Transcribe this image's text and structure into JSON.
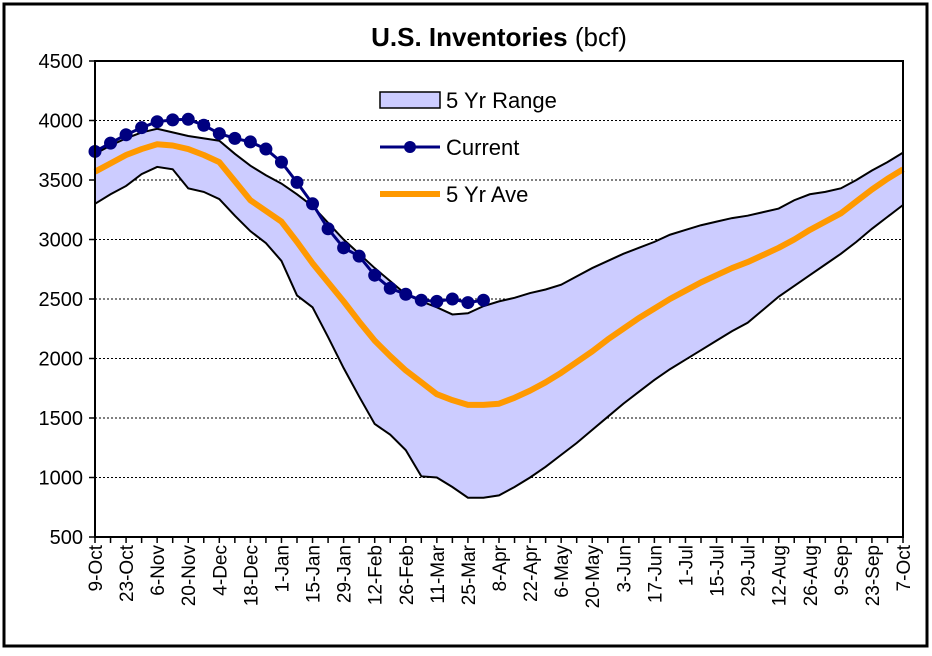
{
  "chart_data": {
    "type": "line",
    "title": "U.S. Inventories",
    "title_unit": "(bcf)",
    "categories": [
      "9-Oct",
      null,
      "23-Oct",
      null,
      "6-Nov",
      null,
      "20-Nov",
      null,
      "4-Dec",
      null,
      "18-Dec",
      null,
      "1-Jan",
      null,
      "15-Jan",
      null,
      "29-Jan",
      null,
      "12-Feb",
      null,
      "26-Feb",
      null,
      "11-Mar",
      null,
      "25-Mar",
      null,
      "8-Apr",
      null,
      "22-Apr",
      null,
      "6-May",
      null,
      "20-May",
      null,
      "3-Jun",
      null,
      "17-Jun",
      null,
      "1-Jul",
      null,
      "15-Jul",
      null,
      "29-Jul",
      null,
      "12-Aug",
      null,
      "26-Aug",
      null,
      "9-Sep",
      null,
      "23-Sep",
      null,
      "7-Oct"
    ],
    "series": [
      {
        "name": "5 Yr Range",
        "kind": "range",
        "color": "#ccccff",
        "high": [
          3720,
          3790,
          3850,
          3900,
          3930,
          3900,
          3870,
          3850,
          3830,
          3720,
          3620,
          3540,
          3470,
          3380,
          3280,
          3140,
          3000,
          2880,
          2760,
          2650,
          2540,
          2480,
          2430,
          2370,
          2380,
          2440,
          2480,
          2510,
          2550,
          2580,
          2620,
          2690,
          2760,
          2820,
          2880,
          2930,
          2980,
          3040,
          3080,
          3120,
          3150,
          3180,
          3200,
          3230,
          3260,
          3330,
          3380,
          3400,
          3430,
          3500,
          3580,
          3650,
          3730
        ],
        "low": [
          3300,
          3380,
          3450,
          3550,
          3610,
          3590,
          3430,
          3400,
          3340,
          3200,
          3070,
          2970,
          2820,
          2530,
          2430,
          2180,
          1920,
          1680,
          1450,
          1360,
          1230,
          1010,
          1000,
          920,
          830,
          830,
          850,
          920,
          1000,
          1090,
          1190,
          1290,
          1400,
          1510,
          1620,
          1720,
          1820,
          1910,
          1990,
          2070,
          2150,
          2230,
          2300,
          2410,
          2520,
          2610,
          2700,
          2790,
          2880,
          2980,
          3090,
          3190,
          3290
        ]
      },
      {
        "name": "Current",
        "kind": "marker-line",
        "color": "#000080",
        "values": [
          3740,
          3810,
          3880,
          3940,
          3990,
          4005,
          4010,
          3960,
          3890,
          3850,
          3820,
          3760,
          3650,
          3480,
          3300,
          3090,
          2930,
          2860,
          2700,
          2590,
          2540,
          2490,
          2480,
          2500,
          2470,
          2490,
          null,
          null,
          null,
          null,
          null,
          null,
          null,
          null,
          null,
          null,
          null,
          null,
          null,
          null,
          null,
          null,
          null,
          null,
          null,
          null,
          null,
          null,
          null,
          null,
          null,
          null,
          null
        ]
      },
      {
        "name": "5 Yr Ave",
        "kind": "line",
        "color": "#ff9900",
        "values": [
          3570,
          3640,
          3710,
          3760,
          3800,
          3790,
          3760,
          3710,
          3650,
          3490,
          3330,
          3240,
          3150,
          2980,
          2800,
          2640,
          2480,
          2310,
          2150,
          2020,
          1900,
          1800,
          1700,
          1650,
          1610,
          1610,
          1620,
          1670,
          1730,
          1800,
          1880,
          1970,
          2060,
          2160,
          2250,
          2340,
          2420,
          2500,
          2570,
          2640,
          2700,
          2760,
          2810,
          2870,
          2930,
          3000,
          3080,
          3150,
          3220,
          3320,
          3420,
          3510,
          3590
        ]
      }
    ],
    "ylim": [
      500,
      4500
    ],
    "yticks": [
      500,
      1000,
      1500,
      2000,
      2500,
      3000,
      3500,
      4000,
      4500
    ],
    "grid": true,
    "legend": "top"
  }
}
